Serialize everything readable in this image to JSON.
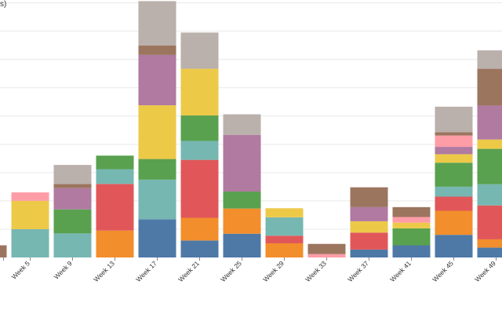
{
  "chart_data": {
    "type": "bar",
    "stacked": true,
    "ylabel_fragment": "s)",
    "categories": [
      "Week 5",
      "Week 9",
      "Week 13",
      "Week 17",
      "Week 21",
      "Week 25",
      "Week 29",
      "Week 33",
      "Week 37",
      "Week 41",
      "Week 45",
      "Week 49"
    ],
    "partial_left_bar": {
      "values": [
        0,
        0,
        0,
        0,
        0,
        0,
        0,
        0,
        4.3
      ]
    },
    "ylim": [
      0,
      91
    ],
    "grid": true,
    "legend": "none",
    "colors": [
      "#4e79a7",
      "#f28e2b",
      "#e15759",
      "#76b7b2",
      "#59a14f",
      "#edc948",
      "#b07aa1",
      "#ff9da7",
      "#9c755f",
      "#bab0ac"
    ],
    "series": [
      {
        "values": [
          0,
          0,
          0,
          13.5,
          6,
          8.4,
          0,
          0,
          2.8,
          4.3,
          8,
          3.5
        ]
      },
      {
        "values": [
          0,
          0,
          9.5,
          0,
          8,
          8.9,
          5,
          0,
          0,
          0,
          8.5,
          2.9
        ]
      },
      {
        "values": [
          0,
          0,
          16.5,
          0,
          20.5,
          0,
          2.7,
          0,
          6,
          0,
          5,
          12
        ]
      },
      {
        "values": [
          10,
          8.5,
          5.2,
          14,
          6.7,
          0,
          6.5,
          0,
          0,
          0,
          3.5,
          7.5
        ]
      },
      {
        "values": [
          0,
          8.5,
          4.8,
          7.3,
          9,
          6,
          0,
          0,
          0,
          6,
          8.5,
          12.5
        ]
      },
      {
        "values": [
          10,
          0,
          0,
          19,
          16.5,
          0,
          3.2,
          0,
          4,
          2,
          3,
          3.3
        ]
      },
      {
        "values": [
          0,
          7.5,
          0,
          17.8,
          0,
          20,
          0,
          0,
          5,
          0,
          2.6,
          12
        ]
      },
      {
        "values": [
          3,
          0,
          0,
          0,
          0,
          0,
          0,
          1.2,
          0,
          2,
          4,
          0
        ]
      },
      {
        "values": [
          0,
          1.5,
          0,
          3.3,
          0,
          0,
          0,
          3.6,
          7,
          3.5,
          1.2,
          13
        ]
      },
      {
        "values": [
          0,
          6.7,
          0,
          15.7,
          12.8,
          7.3,
          0,
          0,
          0,
          0,
          9,
          6.5
        ]
      }
    ]
  }
}
